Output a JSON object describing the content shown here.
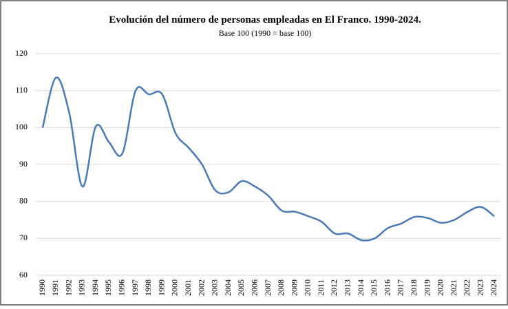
{
  "chart_data": {
    "type": "line",
    "title": "Evolución del número de personas empleadas en El Franco. 1990-2024.",
    "subtitle": "Base 100 (1990 = base 100)",
    "categories": [
      "1990",
      "1991",
      "1992",
      "1993",
      "1994",
      "1995",
      "1996",
      "1997",
      "1998",
      "1999",
      "2000",
      "2001",
      "2002",
      "2003",
      "2004",
      "2005",
      "2006",
      "2007",
      "2008",
      "2009",
      "2010",
      "2011",
      "2012",
      "2013",
      "2014",
      "2015",
      "2016",
      "2017",
      "2018",
      "2019",
      "2020",
      "2021",
      "2022",
      "2023",
      "2024"
    ],
    "series": [
      {
        "name": "El Franco",
        "color": "#4a7ab5",
        "values": [
          100,
          113.5,
          104,
          84,
          100.3,
          96,
          93,
          110,
          109,
          109,
          98.5,
          94.5,
          90,
          83,
          82.5,
          85.5,
          84,
          81.5,
          77.5,
          77.2,
          76,
          74.5,
          71.3,
          71.3,
          69.5,
          70,
          72.8,
          74,
          75.8,
          75.5,
          74.2,
          75,
          77.2,
          78.5,
          76
        ]
      }
    ],
    "ylim": [
      60,
      120
    ],
    "yticks": [
      60,
      70,
      80,
      90,
      100,
      110,
      120
    ],
    "grid": true
  }
}
